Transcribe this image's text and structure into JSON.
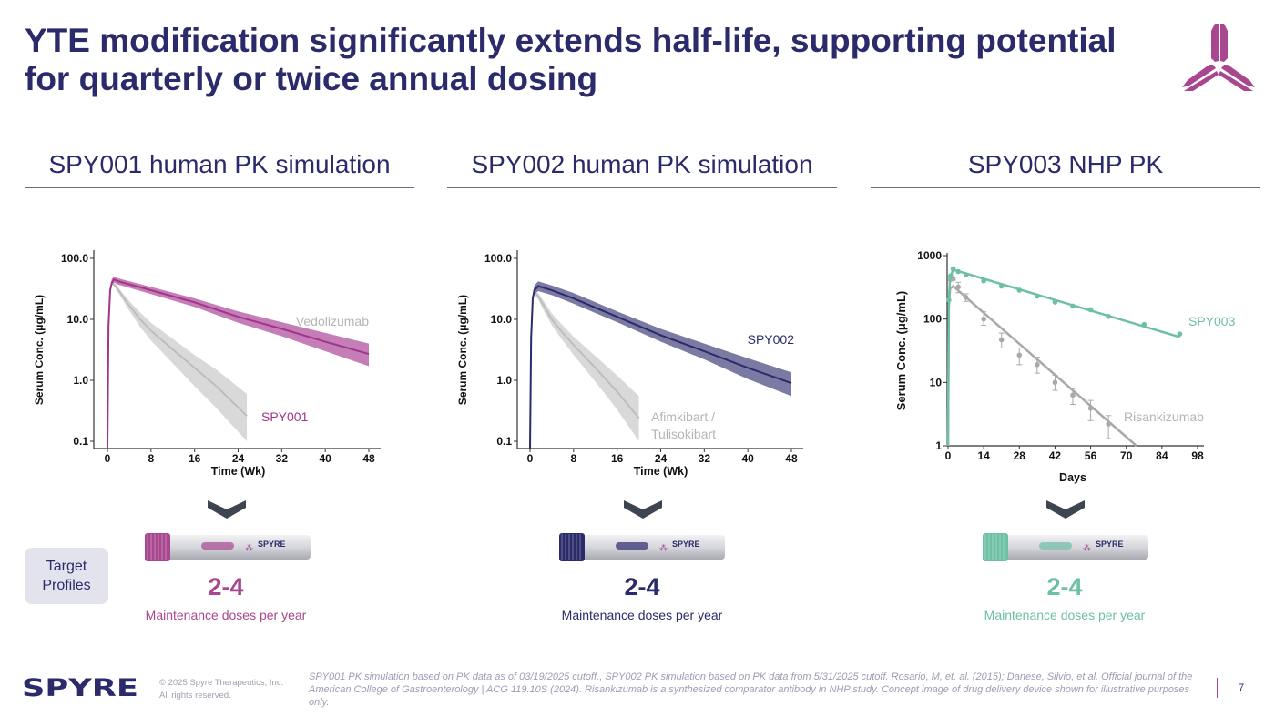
{
  "title": "YTE modification significantly extends half-life, supporting potential for quarterly or twice annual dosing",
  "sections": [
    {
      "heading": "SPY001 human PK simulation",
      "dose_range": "2-4",
      "caption": "Maintenance doses per year",
      "color": "#a8478f"
    },
    {
      "heading": "SPY002 human PK simulation",
      "dose_range": "2-4",
      "caption": "Maintenance doses per year",
      "color": "#2b2a6b"
    },
    {
      "heading": "SPY003 NHP PK",
      "dose_range": "2-4",
      "caption": "Maintenance doses per year",
      "color": "#6dbfa5"
    }
  ],
  "injector_brand": "SPYRE",
  "target_profiles": "Target Profiles",
  "footer": {
    "logo": "SPYRE",
    "copyright_line1": "© 2025 Spyre Therapeutics, Inc.",
    "copyright_line2": "All rights reserved.",
    "footnote": "SPY001 PK simulation based on PK data as of 03/19/2025 cutoff., SPY002 PK simulation based on PK data from 5/31/2025 cutoff. Rosario, M, et. al. (2015); Danese, Silvio, et al. Official journal of the American College of Gastroenterology | ACG 119.10S (2024). Risankizumab is a synthesized comparator antibody in NHP study. Concept image of drug delivery device shown for illustrative purposes only.",
    "page_number": "7"
  },
  "chart_data": [
    {
      "type": "line",
      "xlabel": "Time (Wk)",
      "ylabel": "Serum Conc. (μg/mL)",
      "xlim": [
        0,
        48
      ],
      "ylim": [
        0.1,
        100
      ],
      "yscale": "log",
      "xticks": [
        0,
        8,
        16,
        24,
        32,
        40,
        48
      ],
      "yticks": [
        0.1,
        1,
        10,
        100
      ],
      "ytick_labels": [
        "0.1",
        "1.0",
        "10.0",
        "100.0"
      ],
      "grid": false,
      "series": [
        {
          "name": "Vedolizumab",
          "color": "#bdbdbd",
          "band_color": "#d9d9d9",
          "x": [
            0.8,
            1.5,
            2.5,
            4,
            6,
            8,
            12,
            16,
            20,
            25.6
          ],
          "y": [
            40,
            35,
            26,
            17,
            10,
            6.5,
            3.2,
            1.6,
            0.8,
            0.26
          ],
          "lower": [
            38,
            32,
            23,
            14,
            7.5,
            4.5,
            1.9,
            0.8,
            0.35,
            0.1
          ],
          "upper": [
            42,
            38,
            29,
            20,
            13,
            8.8,
            4.8,
            2.6,
            1.5,
            0.6
          ]
        },
        {
          "name": "SPY001",
          "color": "#a0358a",
          "band_color": "#c47db6",
          "x": [
            0,
            0.2,
            0.5,
            0.8,
            1.2,
            2,
            8,
            16,
            24,
            32,
            40,
            48
          ],
          "y": [
            0.05,
            8,
            30,
            40,
            45,
            42,
            30,
            19,
            11,
            7,
            4.3,
            2.7
          ],
          "lower": [
            0.05,
            7,
            27,
            36,
            40,
            37,
            26,
            16,
            8.8,
            5.3,
            3,
            1.7
          ],
          "upper": [
            0.05,
            9,
            34,
            46,
            50,
            47,
            34,
            22,
            13.5,
            9,
            6,
            4
          ]
        }
      ]
    },
    {
      "type": "line",
      "xlabel": "Time (Wk)",
      "ylabel": "Serum Conc. (μg/mL)",
      "xlim": [
        0,
        48
      ],
      "ylim": [
        0.1,
        100
      ],
      "yscale": "log",
      "xticks": [
        0,
        8,
        16,
        24,
        32,
        40,
        48
      ],
      "yticks": [
        0.1,
        1,
        10,
        100
      ],
      "ytick_labels": [
        "0.1",
        "1.0",
        "10.0",
        "100.0"
      ],
      "grid": false,
      "series": [
        {
          "name": "Afimkibart / Tulisokibart",
          "color": "#bdbdbd",
          "band_color": "#d9d9d9",
          "x": [
            0.8,
            1.5,
            2.5,
            4,
            6,
            8,
            12,
            16,
            20
          ],
          "y": [
            28,
            24,
            17,
            10,
            6,
            3.8,
            1.6,
            0.65,
            0.24
          ],
          "lower": [
            26,
            21,
            14,
            8,
            4.5,
            2.6,
            0.95,
            0.33,
            0.1
          ],
          "upper": [
            30,
            27,
            20,
            12.5,
            8,
            5.2,
            2.5,
            1.2,
            0.55
          ]
        },
        {
          "name": "SPY002",
          "color": "#2b2a6b",
          "band_color": "#7b7aa2",
          "x": [
            0,
            0.2,
            0.5,
            0.8,
            1.5,
            4,
            8,
            16,
            24,
            32,
            40,
            48
          ],
          "y": [
            0.05,
            5,
            22,
            30,
            35,
            30,
            22,
            11,
            5.5,
            3,
            1.6,
            0.9
          ],
          "lower": [
            0.05,
            4,
            19,
            26,
            29,
            25,
            18,
            9,
            4.3,
            2.2,
            1.05,
            0.55
          ],
          "upper": [
            0.05,
            6,
            26,
            36,
            42,
            36,
            27,
            13.5,
            7,
            4,
            2.3,
            1.35
          ]
        }
      ]
    },
    {
      "type": "scatter",
      "xlabel": "Days",
      "ylabel": "Serum Conc. (μg/mL)",
      "xlim": [
        0,
        98
      ],
      "ylim": [
        1,
        1000
      ],
      "yscale": "log",
      "xticks": [
        0,
        14,
        28,
        42,
        56,
        70,
        84,
        98
      ],
      "yticks": [
        1,
        10,
        100,
        1000
      ],
      "ytick_labels": [
        "1",
        "10",
        "100",
        "1000"
      ],
      "grid": false,
      "series": [
        {
          "name": "Risankizumab",
          "color": "#a9a9a9",
          "fit_x": [
            0,
            0.3,
            0.8,
            2,
            74
          ],
          "fit_y": [
            1,
            150,
            300,
            330,
            1
          ],
          "x": [
            1,
            2,
            4,
            7,
            14,
            21,
            28,
            35,
            42,
            49,
            56,
            63
          ],
          "y": [
            420,
            430,
            320,
            220,
            100,
            47,
            27,
            19,
            10,
            6.3,
            3.9,
            2.2
          ],
          "err_low": [
            400,
            410,
            260,
            190,
            80,
            35,
            19,
            14,
            7.5,
            4.5,
            2.5,
            1.3
          ],
          "err_high": [
            440,
            450,
            380,
            250,
            130,
            60,
            35,
            25,
            13,
            8,
            5.2,
            3
          ]
        },
        {
          "name": "SPY003",
          "color": "#6dbfa5",
          "fit_x": [
            0,
            0.3,
            0.8,
            2,
            91
          ],
          "fit_y": [
            1,
            200,
            450,
            600,
            52
          ],
          "x": [
            0.3,
            1,
            2,
            4,
            7,
            14,
            21,
            28,
            35,
            42,
            49,
            56,
            63,
            77,
            91
          ],
          "y": [
            200,
            480,
            620,
            560,
            500,
            400,
            330,
            285,
            230,
            185,
            160,
            140,
            110,
            82,
            58
          ],
          "err_low": [],
          "err_high": []
        }
      ]
    }
  ]
}
